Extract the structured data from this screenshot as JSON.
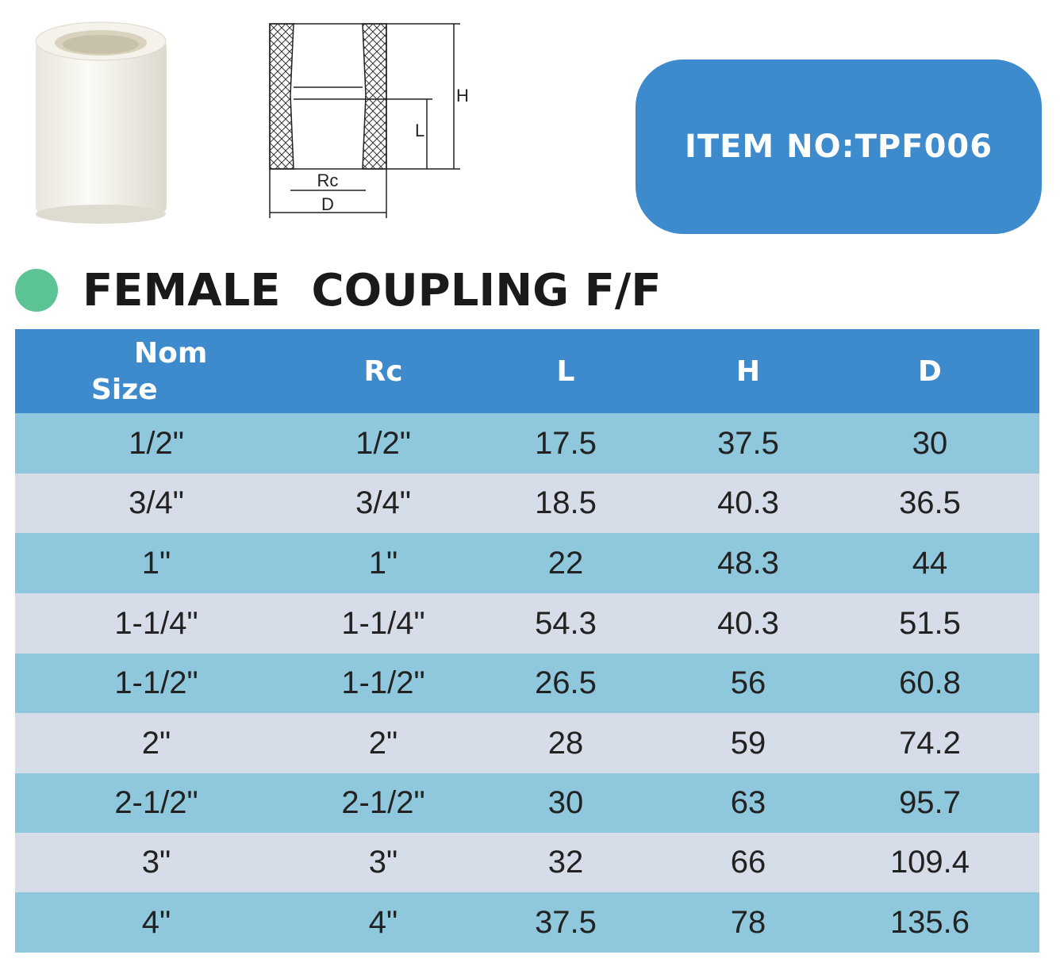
{
  "item_no": "ITEM NO:TPF006",
  "title": "FEMALE  COUPLING F/F",
  "diagram": {
    "h": "H",
    "l": "L",
    "rc": "Rc",
    "d": "D"
  },
  "table": {
    "header_nom": [
      "Nom",
      "Size"
    ],
    "header": [
      "Rc",
      "L",
      "H",
      "D"
    ],
    "rows": [
      [
        "1/2\"",
        "1/2\"",
        "17.5",
        "37.5",
        "30"
      ],
      [
        "3/4\"",
        "3/4\"",
        "18.5",
        "40.3",
        "36.5"
      ],
      [
        "1\"",
        "1\"",
        "22",
        "48.3",
        "44"
      ],
      [
        "1-1/4\"",
        "1-1/4\"",
        "54.3",
        "40.3",
        "51.5"
      ],
      [
        "1-1/2\"",
        "1-1/2\"",
        "26.5",
        "56",
        "60.8"
      ],
      [
        "2\"",
        "2\"",
        "28",
        "59",
        "74.2"
      ],
      [
        "2-1/2\"",
        "2-1/2\"",
        "30",
        "63",
        "95.7"
      ],
      [
        "3\"",
        "3\"",
        "32",
        "66",
        "109.4"
      ],
      [
        "4\"",
        "4\"",
        "37.5",
        "78",
        "135.6"
      ]
    ]
  }
}
